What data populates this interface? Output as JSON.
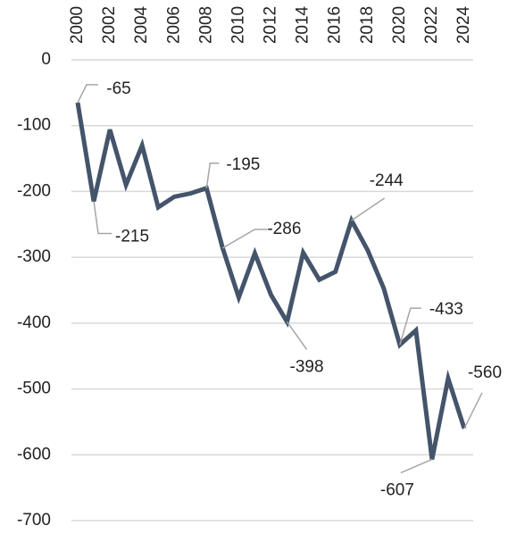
{
  "chart_data": {
    "type": "line",
    "x": [
      2000,
      2001,
      2002,
      2003,
      2004,
      2005,
      2006,
      2007,
      2008,
      2009,
      2010,
      2011,
      2012,
      2013,
      2014,
      2015,
      2016,
      2017,
      2018,
      2019,
      2020,
      2021,
      2022,
      2023,
      2024
    ],
    "series": [
      {
        "color": "#44546a",
        "values": [
          -65,
          -215,
          -106,
          -190,
          -130,
          -224,
          -208,
          -203,
          -195,
          -286,
          -361,
          -294,
          -357,
          -398,
          -293,
          -334,
          -322,
          -244,
          -289,
          -347,
          -433,
          -411,
          -607,
          -484,
          -560
        ],
        "value_labels": [
          "-65",
          "-215",
          null,
          null,
          null,
          null,
          null,
          null,
          "-195",
          "-286",
          null,
          null,
          null,
          "-398",
          null,
          null,
          null,
          "-244",
          null,
          null,
          "-433",
          null,
          "-607",
          null,
          "-560"
        ]
      }
    ],
    "xlim": [
      2000,
      2024
    ],
    "xticks": [
      2000,
      2002,
      2004,
      2006,
      2008,
      2010,
      2012,
      2014,
      2016,
      2018,
      2020,
      2022,
      2024
    ],
    "ylim": [
      -700,
      0
    ],
    "yticks": [
      0,
      -100,
      -200,
      -300,
      -400,
      -500,
      -600,
      -700
    ],
    "grid": true
  }
}
